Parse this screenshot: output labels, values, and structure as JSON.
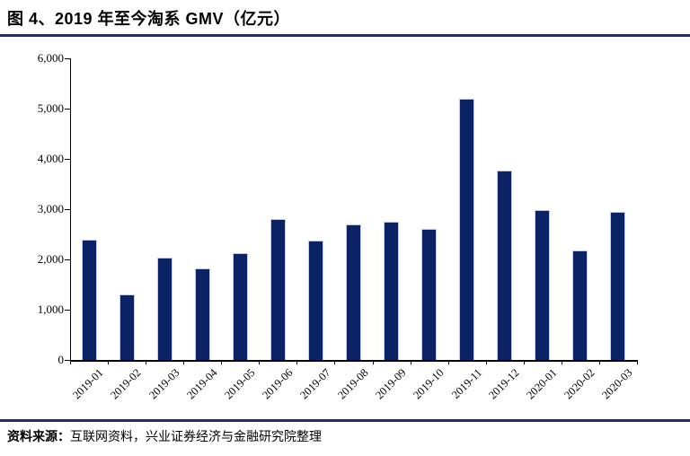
{
  "figure": {
    "title": "图 4、2019 年至今淘系 GMV（亿元）"
  },
  "source": {
    "label": "资料来源：",
    "text": "互联网资料，兴业证券经济与金融研究院整理"
  },
  "colors": {
    "bar": "#0b2365",
    "rule": "#272d62",
    "axis": "#000000"
  },
  "chart_data": {
    "type": "bar",
    "title": "2019 年至今淘系 GMV（亿元）",
    "categories": [
      "2019-01",
      "2019-02",
      "2019-03",
      "2019-04",
      "2019-05",
      "2019-06",
      "2019-07",
      "2019-08",
      "2019-09",
      "2019-10",
      "2019-11",
      "2019-12",
      "2020-01",
      "2020-02",
      "2020-03"
    ],
    "values": [
      2400,
      1300,
      2030,
      1830,
      2120,
      2800,
      2380,
      2700,
      2750,
      2610,
      5200,
      3770,
      2980,
      2170,
      2950
    ],
    "xlabel": "",
    "ylabel": "",
    "ylim": [
      0,
      6000
    ],
    "yticks": [
      0,
      1000,
      2000,
      3000,
      4000,
      5000,
      6000
    ],
    "grid": false,
    "legend_position": "none"
  }
}
